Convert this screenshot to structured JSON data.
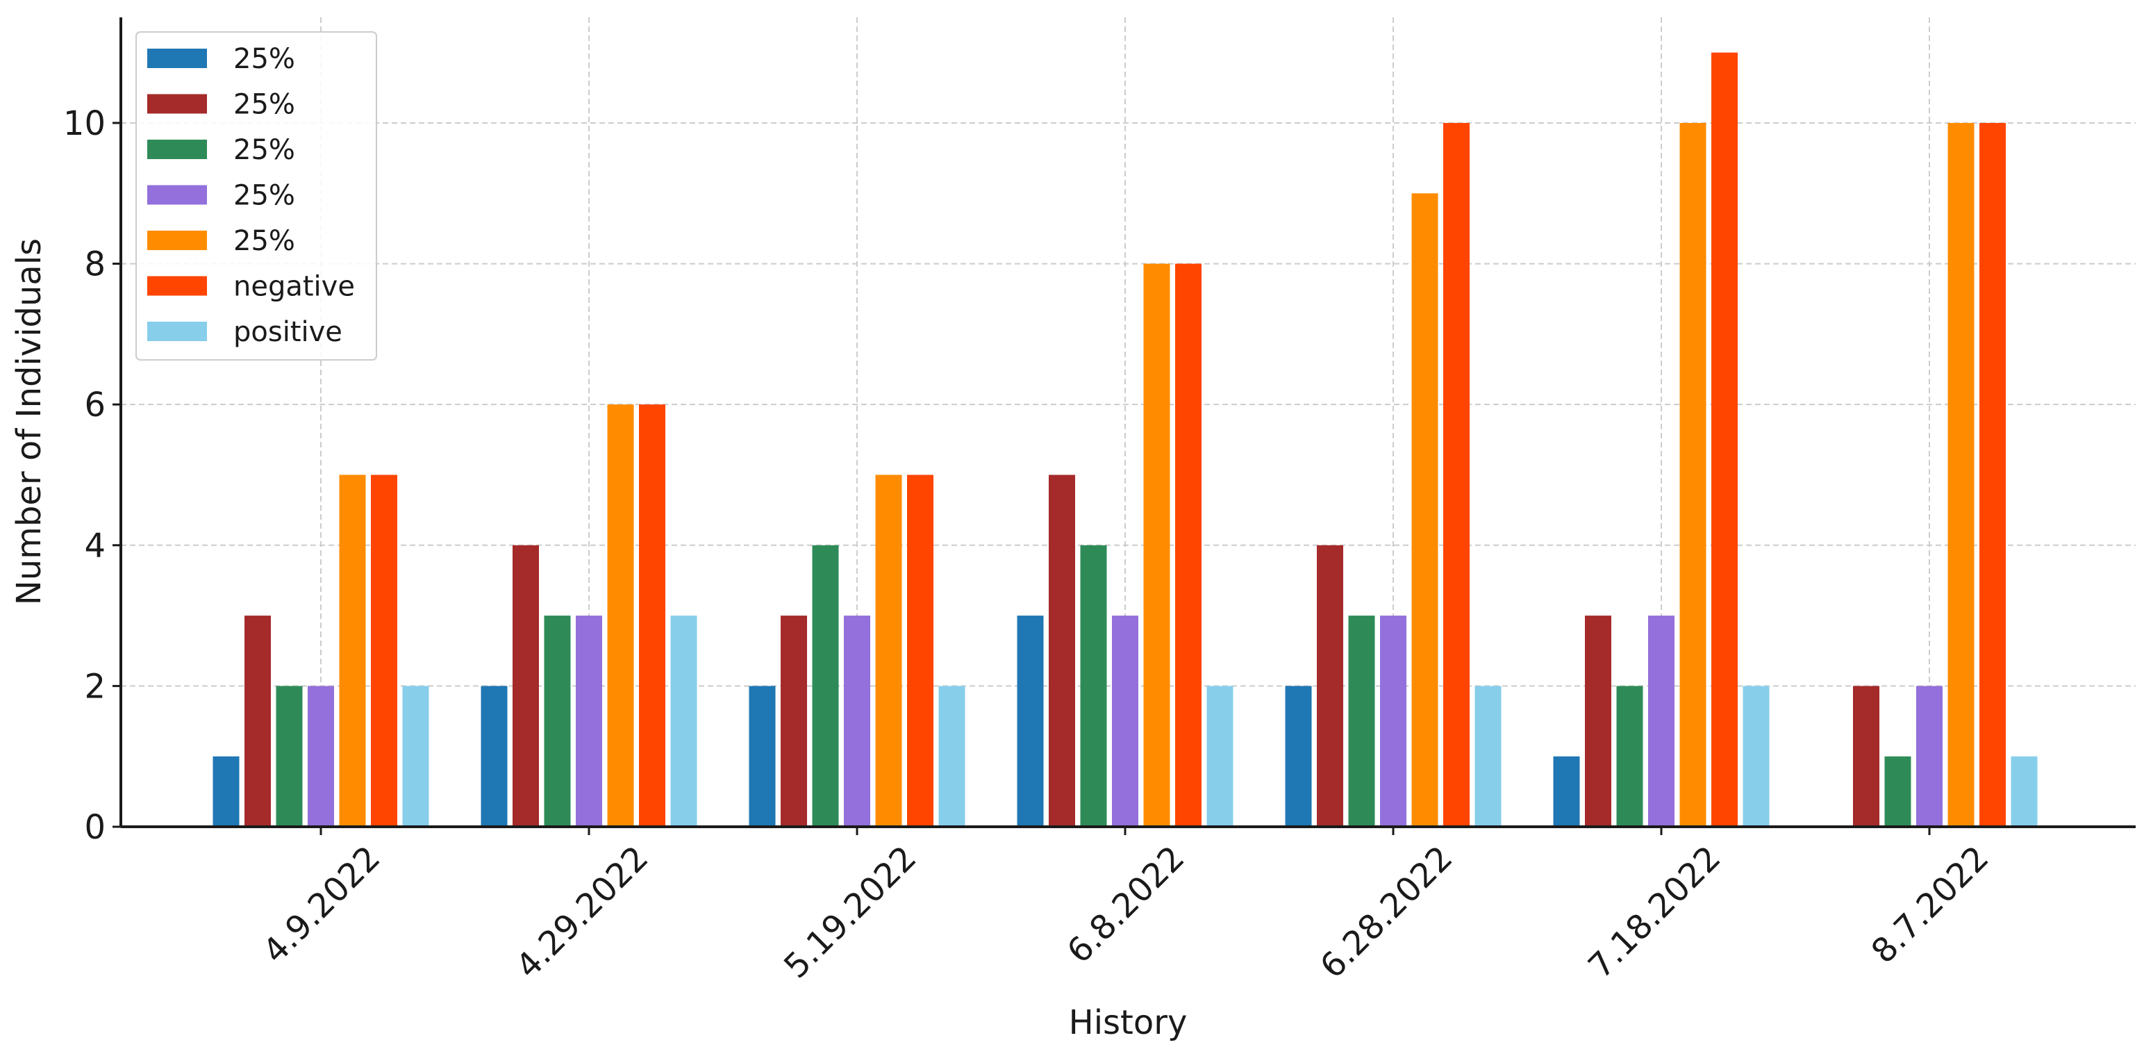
{
  "chart_data": {
    "type": "bar",
    "title": "",
    "xlabel": "History",
    "ylabel": "Number of Individuals",
    "categories": [
      "4.9.2022",
      "4.29.2022",
      "5.19.2022",
      "6.8.2022",
      "6.28.2022",
      "7.18.2022",
      "8.7.2022"
    ],
    "ylim": [
      0,
      11.5
    ],
    "yticks": [
      0,
      2,
      4,
      6,
      8,
      10
    ],
    "ytick_labels": [
      "0",
      "2",
      "4",
      "6",
      "8",
      "10"
    ],
    "grid": true,
    "legend_position": "top-left",
    "series": [
      {
        "name": "25%",
        "color": "#1f77b4",
        "values": [
          1,
          2,
          2,
          3,
          2,
          1,
          0
        ]
      },
      {
        "name": "25%",
        "color": "#a52a2a",
        "values": [
          3,
          4,
          3,
          5,
          4,
          3,
          2
        ]
      },
      {
        "name": "25%",
        "color": "#2e8b57",
        "values": [
          2,
          3,
          4,
          4,
          3,
          2,
          1
        ]
      },
      {
        "name": "25%",
        "color": "#9370db",
        "values": [
          2,
          3,
          3,
          3,
          3,
          3,
          2
        ]
      },
      {
        "name": "25%",
        "color": "#ff8c00",
        "values": [
          5,
          6,
          5,
          8,
          9,
          10,
          10
        ]
      },
      {
        "name": "negative",
        "color": "#ff4500",
        "values": [
          5,
          6,
          5,
          8,
          10,
          11,
          10
        ]
      },
      {
        "name": "positive",
        "color": "#87ceeb",
        "values": [
          2,
          3,
          2,
          2,
          2,
          2,
          1
        ]
      }
    ]
  }
}
